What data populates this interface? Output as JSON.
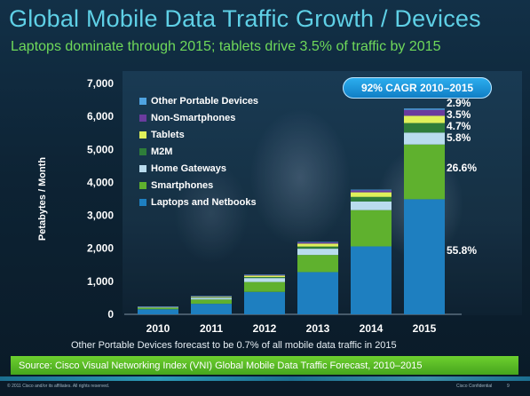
{
  "title": "Global Mobile Data Traffic Growth / Devices",
  "subtitle": "Laptops dominate through 2015; tablets drive 3.5% of traffic by 2015",
  "cagr_badge": "92% CAGR 2010–2015",
  "note": "Other Portable Devices forecast to be 0.7% of all mobile data traffic in 2015",
  "source": "Source: Cisco Visual Networking Index (VNI) Global Mobile Data Traffic Forecast, 2010–2015",
  "footer": {
    "copyright": "© 2011 Cisco and/or its affiliates. All rights reserved.",
    "confidential": "Cisco Confidential",
    "page": "9"
  },
  "colors": {
    "title": "#5fd0e6",
    "subtitle": "#6fd95a",
    "badge": "#1a90d8",
    "source_bar": "#5cbf27"
  },
  "chart_data": {
    "type": "bar",
    "stacked": true,
    "ylabel": "Petabytes / Month",
    "xlabel": "",
    "ylim": [
      0,
      7000
    ],
    "y_ticks": [
      0,
      1000,
      2000,
      3000,
      4000,
      5000,
      6000,
      7000
    ],
    "y_tick_labels": [
      "0",
      "1,000",
      "2,000",
      "3,000",
      "4,000",
      "5,000",
      "6,000",
      "7,000"
    ],
    "categories": [
      "2010",
      "2011",
      "2012",
      "2013",
      "2014",
      "2015"
    ],
    "series": [
      {
        "name": "Laptops and Netbooks",
        "color": "#1e7fc0",
        "values": [
          155,
          320,
          680,
          1280,
          2060,
          3490
        ]
      },
      {
        "name": "Smartphones",
        "color": "#5fb12e",
        "values": [
          40,
          130,
          300,
          520,
          1100,
          1660
        ]
      },
      {
        "name": "Home Gateways",
        "color": "#b9dcee",
        "values": [
          15,
          50,
          120,
          190,
          260,
          360
        ]
      },
      {
        "name": "M2M",
        "color": "#2e7d3a",
        "values": [
          8,
          15,
          30,
          65,
          140,
          290
        ]
      },
      {
        "name": "Tablets",
        "color": "#dff05a",
        "values": [
          5,
          20,
          45,
          90,
          140,
          220
        ]
      },
      {
        "name": "Non-Smartphones",
        "color": "#6a3c9e",
        "values": [
          12,
          18,
          25,
          40,
          60,
          180
        ]
      },
      {
        "name": "Other Portable Devices",
        "color": "#4fa3e0",
        "values": [
          1,
          3,
          5,
          10,
          20,
          40
        ]
      }
    ],
    "legend_order": [
      "Other Portable Devices",
      "Non-Smartphones",
      "Tablets",
      "M2M",
      "Home Gateways",
      "Smartphones",
      "Laptops and Netbooks"
    ],
    "annotations_2015": [
      "2.9%",
      "3.5%",
      "4.7%",
      "5.8%",
      "26.6%",
      "55.8%"
    ],
    "grid": false,
    "legend_position": "top-left"
  }
}
